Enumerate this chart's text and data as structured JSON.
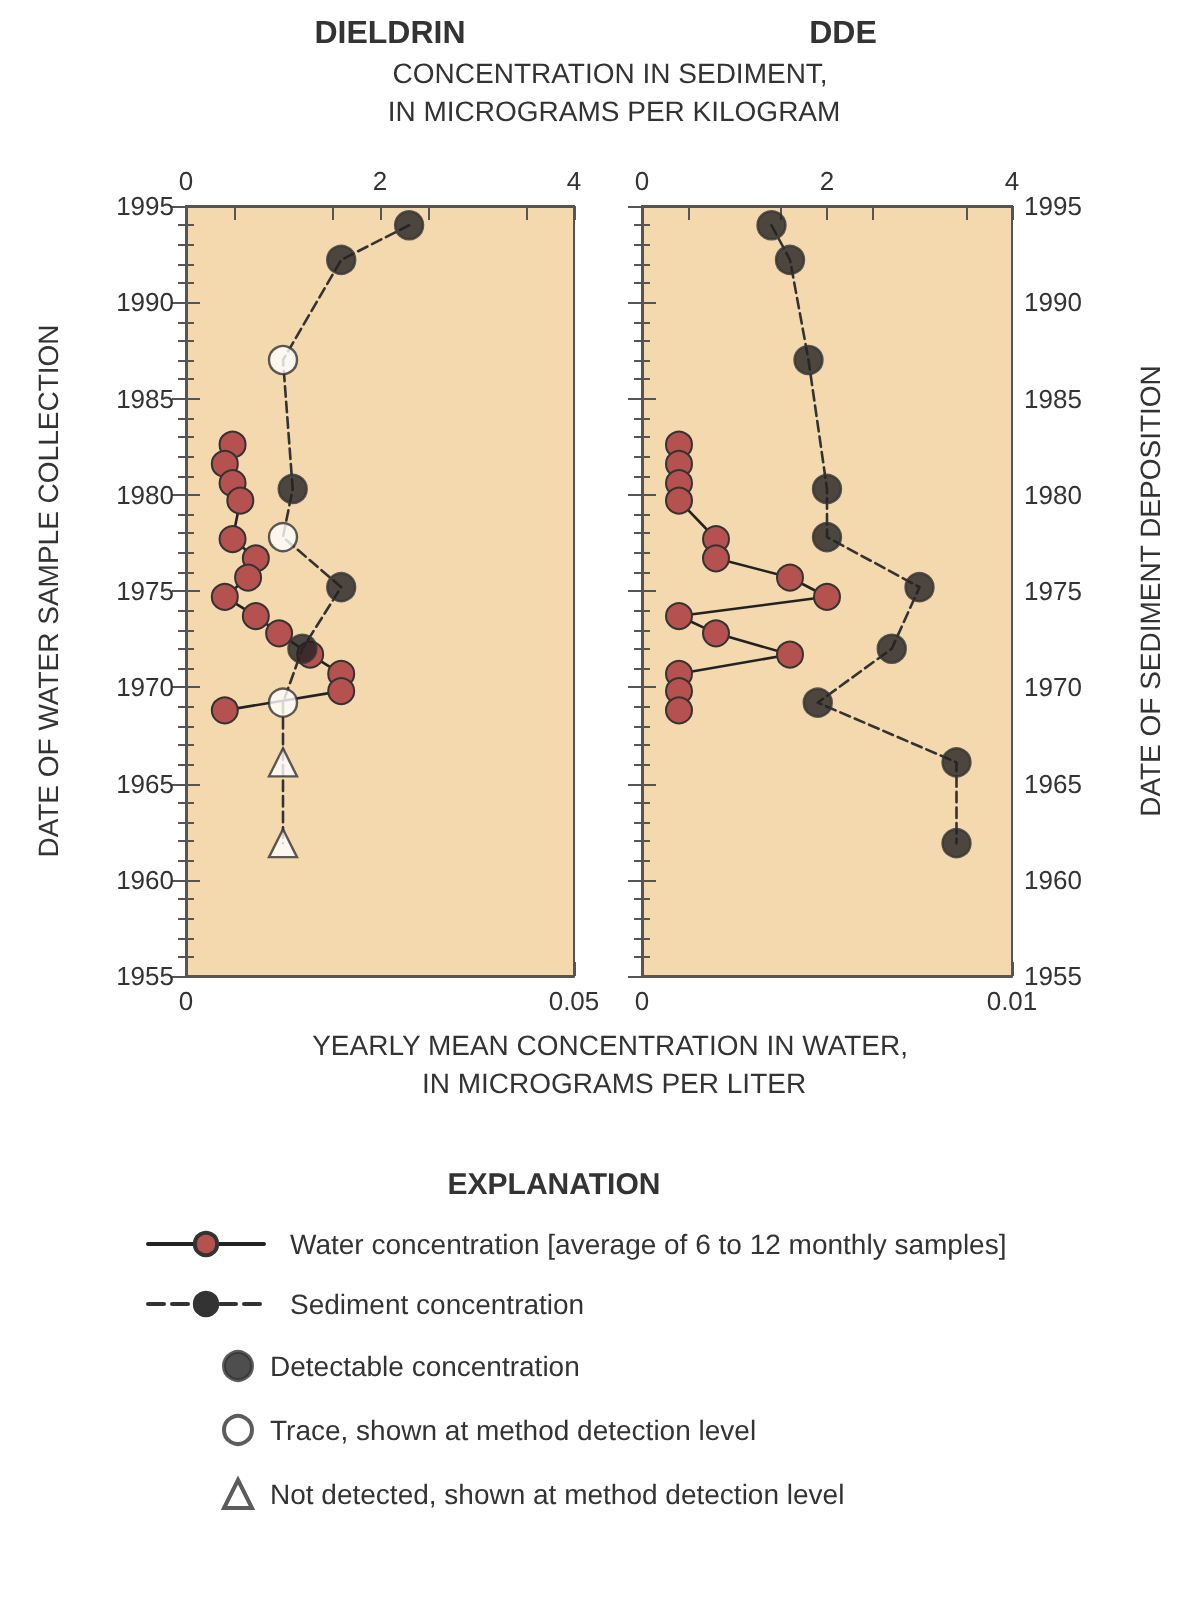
{
  "chart_data": [
    {
      "type": "line",
      "title": "DIELDRIN",
      "xlabel": "YEARLY MEAN CONCENTRATION IN WATER, IN MICROGRAMS PER LITER",
      "x2label": "CONCENTRATION IN SEDIMENT, IN MICROGRAMS PER KILOGRAM",
      "ylabel": "DATE OF WATER SAMPLE COLLECTION",
      "legend_title": "EXPLANATION",
      "xlim": [
        0,
        0.05
      ],
      "xticks": [
        0,
        0.05
      ],
      "x2lim": [
        0,
        4
      ],
      "x2ticks": [
        0,
        2,
        4
      ],
      "ylim": [
        1955,
        1995
      ],
      "yticks": [
        1955,
        1960,
        1965,
        1970,
        1975,
        1980,
        1985,
        1990,
        1995
      ],
      "grid": false,
      "legend": "bottom",
      "series": [
        {
          "name": "Water concentration [average of 6 to 12 monthly samples]",
          "marker": "circle",
          "line_style": "solid",
          "color": "#b5524f",
          "x": [
            0.006,
            0.005,
            0.006,
            0.007,
            0.006,
            0.009,
            0.008,
            0.005,
            0.009,
            0.012,
            0.016,
            0.02,
            0.02,
            0.005
          ],
          "values": [
            1982.6,
            1981.6,
            1980.6,
            1979.7,
            1977.7,
            1976.7,
            1975.7,
            1974.7,
            1973.7,
            1972.8,
            1971.7,
            1970.7,
            1969.8,
            1968.8
          ]
        },
        {
          "name": "Sediment concentration",
          "marker": "none",
          "line_style": "dashed",
          "color": "#333333",
          "axis": "x2",
          "x": [
            2.3,
            1.6,
            1.0,
            1.1,
            1.0,
            1.6,
            1.2,
            1.0,
            1.0,
            1.0
          ],
          "values": [
            1994,
            1992.2,
            1987,
            1980.3,
            1977.8,
            1975.2,
            1972,
            1969.2,
            1966.1,
            1961.9
          ]
        },
        {
          "name": "Detectable concentration",
          "type": "scatter",
          "marker": "circle",
          "color": "#222222",
          "axis": "x2",
          "x": [
            2.3,
            1.6,
            1.1,
            1.6,
            1.2
          ],
          "values": [
            1994,
            1992.2,
            1980.3,
            1975.2,
            1972
          ]
        },
        {
          "name": "Trace, shown at method detection level",
          "type": "scatter",
          "marker": "circle",
          "color": "#ffffff",
          "axis": "x2",
          "x": [
            1.0,
            1.0,
            1.0
          ],
          "values": [
            1987,
            1977.8,
            1969.2
          ]
        },
        {
          "name": "Not detected, shown at method detection level",
          "type": "scatter",
          "marker": "triangle",
          "color": "#ffffff",
          "axis": "x2",
          "x": [
            1.0,
            1.0
          ],
          "values": [
            1966.1,
            1961.9
          ]
        }
      ]
    },
    {
      "type": "line",
      "title": "DDE",
      "ylabel": "DATE OF SEDIMENT DEPOSITION",
      "xlim": [
        0,
        0.01
      ],
      "xticks": [
        0,
        0.01
      ],
      "x2lim": [
        0,
        4
      ],
      "x2ticks": [
        0,
        2,
        4
      ],
      "ylim": [
        1955,
        1995
      ],
      "yticks": [
        1955,
        1960,
        1965,
        1970,
        1975,
        1980,
        1985,
        1990,
        1995
      ],
      "grid": false,
      "series": [
        {
          "marker": "circle",
          "line_style": "solid",
          "color": "#b5524f",
          "x": [
            0.001,
            0.001,
            0.001,
            0.001,
            0.002,
            0.002,
            0.004,
            0.005,
            0.001,
            0.002,
            0.004,
            0.001,
            0.001,
            0.001
          ],
          "values": [
            1982.6,
            1981.6,
            1980.6,
            1979.7,
            1977.7,
            1976.7,
            1975.7,
            1974.7,
            1973.7,
            1972.8,
            1971.7,
            1970.7,
            1969.8,
            1968.8
          ]
        },
        {
          "marker": "none",
          "line_style": "dashed",
          "color": "#333333",
          "axis": "x2",
          "x": [
            1.4,
            1.6,
            1.8,
            2.0,
            2.0,
            3.0,
            2.7,
            1.9,
            3.4,
            3.4
          ],
          "values": [
            1994,
            1992.2,
            1987,
            1980.3,
            1977.8,
            1975.2,
            1972,
            1969.2,
            1966.1,
            1961.9
          ]
        },
        {
          "type": "scatter",
          "marker": "circle",
          "color": "#222222",
          "axis": "x2",
          "x": [
            1.4,
            1.6,
            1.8,
            2.0,
            2.0,
            3.0,
            2.7,
            1.9,
            3.4,
            3.4
          ],
          "values": [
            1994,
            1992.2,
            1987,
            1980.3,
            1977.8,
            1975.2,
            1972,
            1969.2,
            1966.1,
            1961.9
          ]
        }
      ]
    }
  ]
}
